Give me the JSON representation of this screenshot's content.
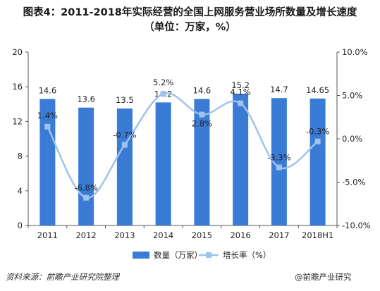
{
  "title_line1": "图表4：2011-2018年实际经营的全国上网服务营业场所数量及增长速度",
  "title_line2": "（单位：万家，%）",
  "source": "资料来源：前瞻产业研究院整理",
  "watermark_text": "@前瞻产业研究",
  "colors": {
    "bar": "#3a7bd5",
    "line": "#9fc3ea",
    "axis": "#555555"
  },
  "chart_data": {
    "type": "bar+line",
    "categories": [
      "2011",
      "2012",
      "2013",
      "2014",
      "2015",
      "2016",
      "2017",
      "2018H1"
    ],
    "series": [
      {
        "name": "数量（万家）",
        "type": "bar",
        "axis": "left",
        "values": [
          14.6,
          13.6,
          13.5,
          14.2,
          14.6,
          15.2,
          14.7,
          14.65
        ],
        "labels": [
          "14.6",
          "13.6",
          "13.5",
          "14.2",
          "14.6",
          "15.2",
          "14.7",
          "14.65"
        ]
      },
      {
        "name": "增长率（%）",
        "type": "line",
        "axis": "right",
        "values": [
          1.4,
          -6.8,
          -0.7,
          5.2,
          2.8,
          4.1,
          -3.3,
          -0.3
        ],
        "labels": [
          "1.4%",
          "-6.8%",
          "-0.7%",
          "5.2%",
          "2.8%",
          "4.1%",
          "-3.3%",
          "-0.3%"
        ]
      }
    ],
    "y_left": {
      "min": 0,
      "max": 20,
      "ticks": [
        0,
        4,
        8,
        12,
        16,
        20
      ],
      "tick_labels": [
        "0",
        "4",
        "8",
        "12",
        "16",
        "20"
      ]
    },
    "y_right": {
      "min": -10,
      "max": 10,
      "ticks": [
        -10,
        -5,
        0,
        5,
        10
      ],
      "tick_labels": [
        "-10.0%",
        "-5.0%",
        "0.0%",
        "5.0%",
        "10.0%"
      ]
    },
    "legend_position": "bottom"
  }
}
